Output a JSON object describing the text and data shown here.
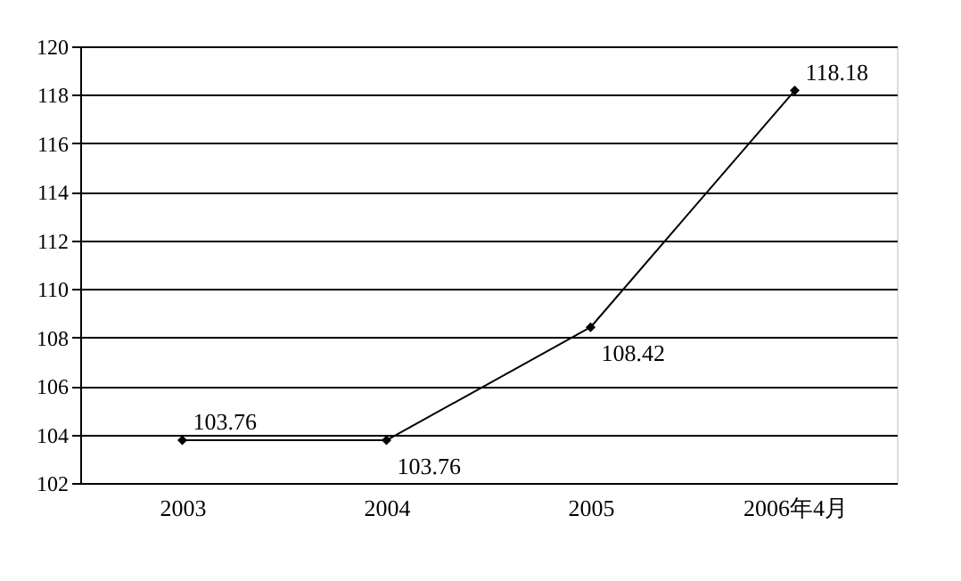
{
  "chart_data": {
    "type": "line",
    "categories": [
      "2003",
      "2004",
      "2005",
      "2006年4月"
    ],
    "series": [
      {
        "color": "#000000",
        "values": [
          103.76,
          103.76,
          108.42,
          118.18
        ]
      }
    ],
    "ylim": [
      102,
      120
    ],
    "yticks": [
      102,
      104,
      106,
      108,
      110,
      112,
      114,
      116,
      118,
      120
    ],
    "grid": "y",
    "marker": "diamond",
    "line_style": "solid",
    "data_labels": true,
    "legend": false
  }
}
